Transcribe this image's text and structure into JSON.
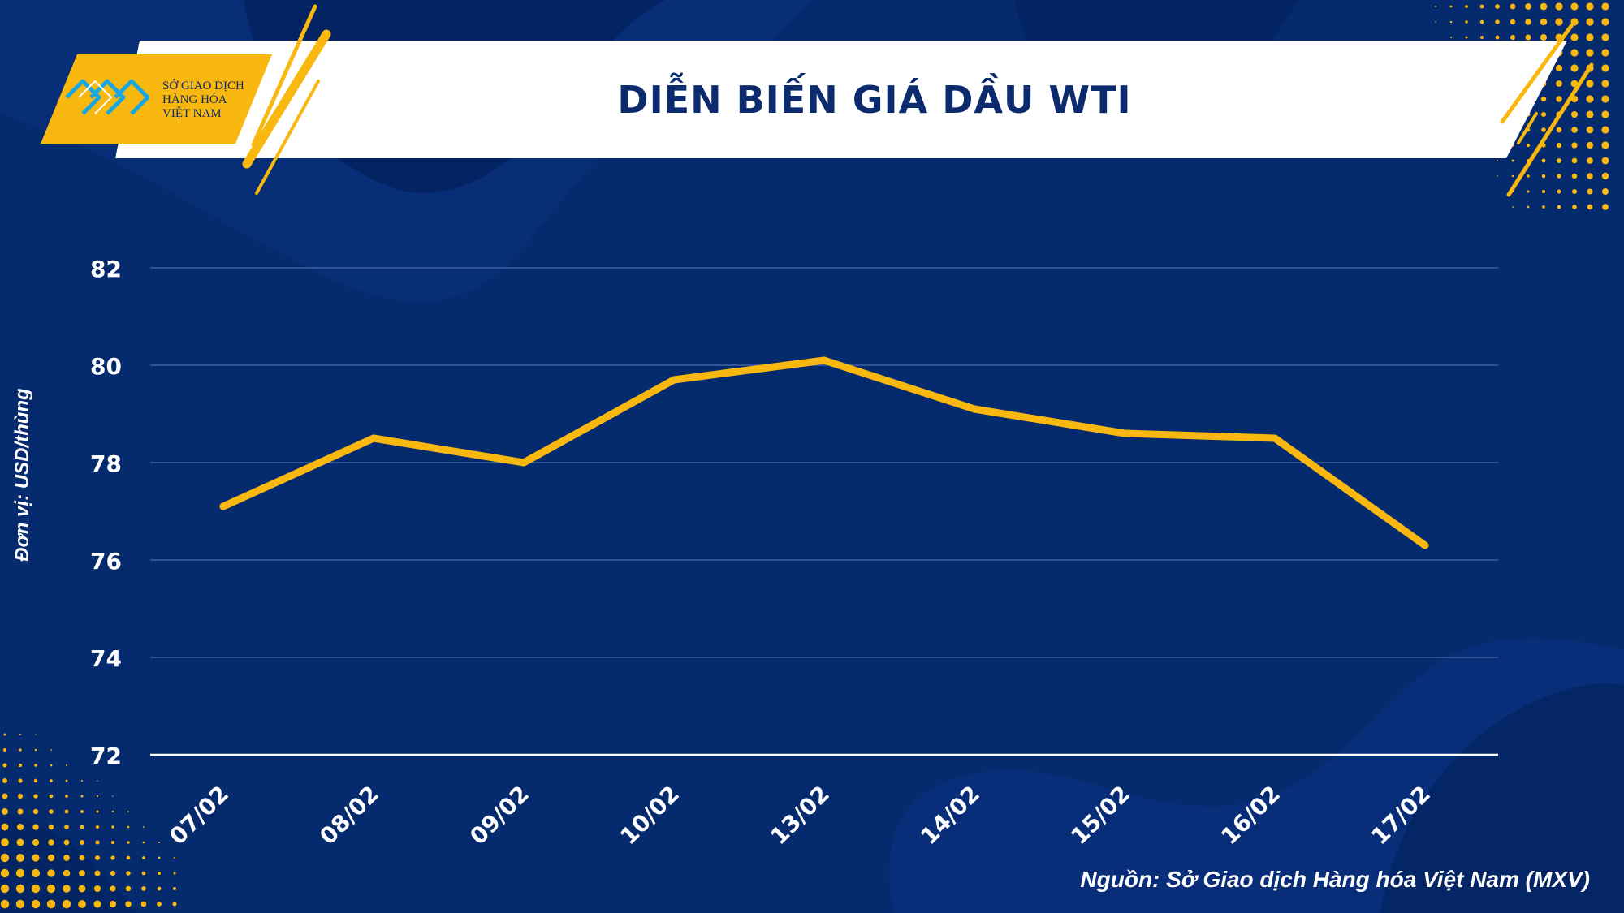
{
  "header": {
    "title": "DIỄN BIẾN GIÁ DẦU WTI",
    "logo_lines": [
      "SỞ GIAO DỊCH",
      "HÀNG HÓA",
      "VIỆT NAM"
    ]
  },
  "footer": {
    "source": "Nguồn: Sở Giao dịch Hàng hóa Việt Nam (MXV)"
  },
  "colors": {
    "background": "#062a6e",
    "accent": "#f8b80f",
    "title_text": "#0b2b6e",
    "white": "#ffffff"
  },
  "chart_data": {
    "type": "line",
    "title": "DIỄN BIẾN GIÁ DẦU WTI",
    "ylabel": "Đơn vị: USD/thùng",
    "xlabel": "",
    "categories": [
      "07/02",
      "08/02",
      "09/02",
      "10/02",
      "13/02",
      "14/02",
      "15/02",
      "16/02",
      "17/02"
    ],
    "series": [
      {
        "values": [
          77.1,
          78.5,
          78.0,
          79.7,
          80.1,
          79.1,
          78.6,
          78.5,
          76.3
        ]
      }
    ],
    "ylim": [
      72,
      82
    ],
    "yticks": [
      72,
      74,
      76,
      78,
      80,
      82
    ],
    "grid": true,
    "legend": "none"
  }
}
